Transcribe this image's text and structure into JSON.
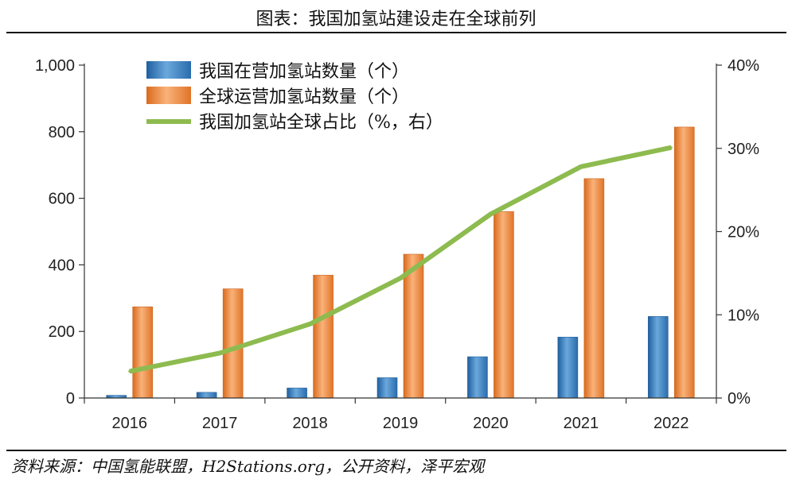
{
  "title": "图表：我国加氢站建设走在全球前列",
  "source": "资料来源：中国氢能联盟，H2Stations.org，公开资料，泽平宏观",
  "colors": {
    "china_bar": "#3a7fbf",
    "global_bar": "#ef8a3c",
    "share_line": "#8dbb4f",
    "axis": "#333333"
  },
  "chart_data": {
    "type": "bar",
    "categories": [
      "2016",
      "2017",
      "2018",
      "2019",
      "2020",
      "2021",
      "2022"
    ],
    "series": [
      {
        "name": "我国在营加氢站数量（个）",
        "type": "bar",
        "axis": "left",
        "values": [
          8,
          17,
          30,
          61,
          124,
          183,
          245
        ]
      },
      {
        "name": "全球运营加氢站数量（个）",
        "type": "bar",
        "axis": "left",
        "values": [
          274,
          328,
          369,
          432,
          560,
          659,
          814
        ]
      },
      {
        "name": "我国加氢站全球占比（%，右）",
        "type": "line",
        "axis": "right",
        "values": [
          3.2,
          5.4,
          8.9,
          14.4,
          22.1,
          27.8,
          30.1
        ]
      }
    ],
    "y_left": {
      "lim": [
        0,
        1000
      ],
      "ticks": [
        "0",
        "200",
        "400",
        "600",
        "800",
        "1,000"
      ]
    },
    "y_right": {
      "lim": [
        0,
        40
      ],
      "ticks": [
        "0%",
        "10%",
        "20%",
        "30%",
        "40%"
      ]
    },
    "legend_position": "top-left",
    "grid": false
  }
}
